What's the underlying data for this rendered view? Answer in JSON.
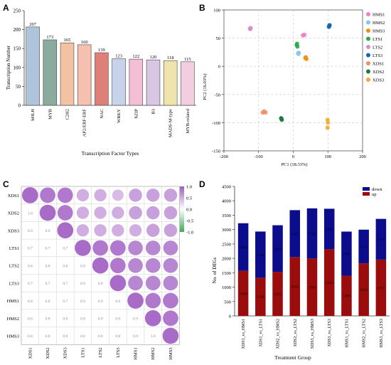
{
  "panels": {
    "A": {
      "label": "A",
      "chart_data": {
        "type": "bar",
        "title": "",
        "xlabel": "Transcription Factor Types",
        "ylabel": "Transcription Number",
        "ylim": [
          0,
          250
        ],
        "yticks": [
          0,
          50,
          100,
          150,
          200,
          250
        ],
        "categories": [
          "bHLH",
          "MYB",
          "C2H2",
          "AP2/ERF-ERF",
          "NAC",
          "WRKY",
          "bZIP",
          "B3",
          "MADS-M-type",
          "MYB-related"
        ],
        "values": [
          207,
          173,
          165,
          160,
          139,
          123,
          122,
          120,
          118,
          115
        ],
        "colors": [
          "#aec4da",
          "#8aab9e",
          "#f3c2a2",
          "#f5c0ae",
          "#de7f78",
          "#c7d3ea",
          "#f2bfd4",
          "#d8c6e3",
          "#f0e4ad",
          "#f5cde0"
        ],
        "grid": false
      }
    },
    "B": {
      "label": "B",
      "chart_data": {
        "type": "scatter",
        "xlabel": "PC1 (18.33%)",
        "ylabel": "PC2 (16.03%)",
        "xlim": [
          -200,
          200
        ],
        "ylim": [
          -150,
          100
        ],
        "xticks": [
          -200,
          -100,
          0,
          100,
          200
        ],
        "yticks": [
          -150,
          -100,
          -50,
          0,
          50,
          100
        ],
        "grid": true,
        "legend": "right",
        "series": [
          {
            "name": "HMS1",
            "color": "#ee82c8",
            "points": [
              [
                30,
                55
              ],
              [
                28,
                55
              ],
              [
                32,
                56
              ]
            ]
          },
          {
            "name": "HMS2",
            "color": "#87c6e8",
            "points": [
              [
                15,
                22
              ],
              [
                16,
                24
              ],
              [
                14,
                23
              ]
            ]
          },
          {
            "name": "HMS3",
            "color": "#f0900f",
            "points": [
              [
                35,
                15
              ],
              [
                38,
                13
              ],
              [
                36,
                16
              ]
            ]
          },
          {
            "name": "LTS1",
            "color": "#2da84c",
            "points": [
              [
                10,
                38
              ],
              [
                12,
                35
              ],
              [
                11,
                40
              ]
            ]
          },
          {
            "name": "LTS2",
            "color": "#d68fc7",
            "points": [
              [
                -125,
                67
              ],
              [
                -123,
                68
              ],
              [
                -124,
                66
              ]
            ]
          },
          {
            "name": "LTS3",
            "color": "#1565b8",
            "points": [
              [
                103,
                70
              ],
              [
                104,
                72
              ],
              [
                105,
                73
              ]
            ]
          },
          {
            "name": "XDS1",
            "color": "#f28e6f",
            "points": [
              [
                -88,
                -82
              ],
              [
                -84,
                -80
              ],
              [
                -80,
                -82
              ]
            ]
          },
          {
            "name": "XDS2",
            "color": "#1b7a3a",
            "points": [
              [
                -35,
                -92
              ],
              [
                -33,
                -95
              ],
              [
                -34,
                -93
              ]
            ]
          },
          {
            "name": "XDS3",
            "color": "#f2ab2a",
            "points": [
              [
                99,
                -95
              ],
              [
                100,
                -100
              ],
              [
                99,
                -109
              ]
            ]
          }
        ]
      }
    },
    "C": {
      "label": "C",
      "chart_data": {
        "type": "heatmap",
        "labels": [
          "XDS1",
          "XDS2",
          "XDS3",
          "LTS1",
          "LTS2",
          "LTS3",
          "HMS1",
          "HMS2",
          "HMS3"
        ],
        "matrix": [
          [
            1.0,
            0.95,
            0.95,
            0.75,
            0.75,
            0.7,
            0.8,
            0.8,
            0.8
          ],
          [
            1.0,
            1.0,
            0.95,
            0.75,
            0.75,
            0.75,
            0.8,
            0.8,
            0.8
          ],
          [
            0.9,
            0.9,
            1.0,
            0.75,
            0.75,
            0.75,
            0.75,
            0.8,
            0.8
          ],
          [
            0.7,
            0.7,
            0.7,
            1.0,
            0.95,
            0.95,
            0.9,
            0.9,
            0.9
          ],
          [
            0.8,
            0.8,
            0.8,
            0.9,
            1.0,
            0.95,
            0.9,
            0.9,
            0.9
          ],
          [
            0.7,
            0.7,
            0.7,
            0.9,
            0.9,
            1.0,
            0.9,
            0.9,
            0.9
          ],
          [
            0.8,
            0.8,
            0.7,
            0.9,
            0.9,
            0.9,
            1.0,
            0.95,
            0.95
          ],
          [
            0.8,
            0.8,
            0.8,
            0.9,
            0.9,
            0.9,
            0.9,
            1.0,
            0.95
          ],
          [
            0.8,
            0.8,
            0.8,
            0.8,
            0.8,
            0.8,
            0.9,
            1.0,
            1.0
          ]
        ],
        "colorbar_ticks": [
          "1.0",
          "0.5",
          "0.0",
          "-0.5",
          "-1.0"
        ],
        "colorbar_top": "#9a5fc0",
        "colorbar_mid": "#ffffff",
        "colorbar_bottom": "#3cab5a"
      }
    },
    "D": {
      "label": "D",
      "chart_data": {
        "type": "bar",
        "stacked": true,
        "xlabel": "Treatment Group",
        "ylabel": "No. of DEGs",
        "ylim": [
          0,
          4500
        ],
        "yticks": [
          0,
          500,
          1000,
          1500,
          2000,
          2500,
          3000,
          3500,
          4000,
          4500
        ],
        "legend": "top-right",
        "categories": [
          "XDS1_vs_HMS1",
          "XDS1_vs_LTS1",
          "XDS2_vs_HMS2",
          "XDS2_vs_LTS2",
          "XDS3_vs_HMS3",
          "XDS3_vs_LTS3",
          "HMS1_vs_LTS1",
          "HMS2_vs_LTS2",
          "HMS3_vs_LTS3"
        ],
        "series": [
          {
            "name": "up",
            "color": "#9b0c0c",
            "values": [
              1566,
              1326,
              1531,
              2044,
              1994,
              2322,
              1398,
              1826,
              1957
            ],
            "labels": [
              "1566",
              "1326",
              "1531",
              "2044",
              "1994",
              "2322",
              "1398",
              "1826",
              "1957"
            ]
          },
          {
            "name": "down",
            "color": "#0b0d8c",
            "values": [
              1654,
              1606,
              1620,
              1631,
              1744,
              1402,
              1532,
              1171,
              1415
            ],
            "labels": [
              "1654",
              "1606",
              "1620",
              "1631",
              "1744",
              "1402",
              "1532",
              "1171",
              "1415"
            ]
          }
        ]
      }
    }
  }
}
